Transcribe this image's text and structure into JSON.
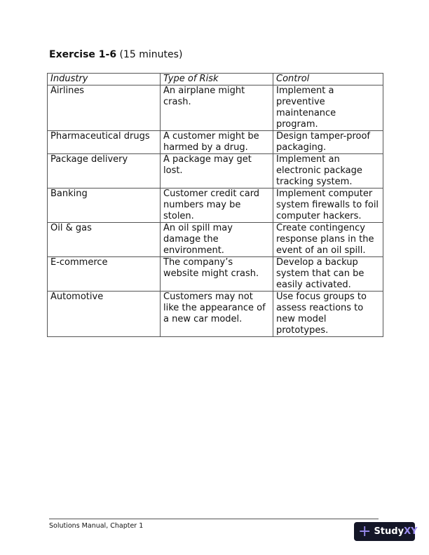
{
  "heading": {
    "bold": "Exercise 1-6",
    "rest": " (15 minutes)"
  },
  "table": {
    "headers": [
      "Industry",
      "Type of Risk",
      "Control"
    ],
    "rows": [
      [
        "Airlines",
        "An airplane might crash.",
        "Implement a preventive maintenance program."
      ],
      [
        "Pharmaceutical drugs",
        "A customer might be harmed by a drug.",
        "Design tamper-proof packaging."
      ],
      [
        "Package delivery",
        "A package may get lost.",
        "Implement an electronic package tracking system."
      ],
      [
        "Banking",
        "Customer credit card numbers may be stolen.",
        "Implement computer system firewalls to foil computer hackers."
      ],
      [
        "Oil & gas",
        "An oil spill may damage the environment.",
        "Create contingency response plans in the event of an oil spill."
      ],
      [
        "E-commerce",
        "The company’s website might crash.",
        "Develop a backup system that can be easily activated."
      ],
      [
        "Automotive",
        "Customers may not like the appearance of a new car model.",
        "Use focus groups to assess reactions to new model prototypes."
      ]
    ]
  },
  "footer": {
    "text": "Solutions Manual, Chapter 1"
  },
  "logo": {
    "text1": "Study",
    "text2": "XY",
    "icon": "plus-icon"
  }
}
